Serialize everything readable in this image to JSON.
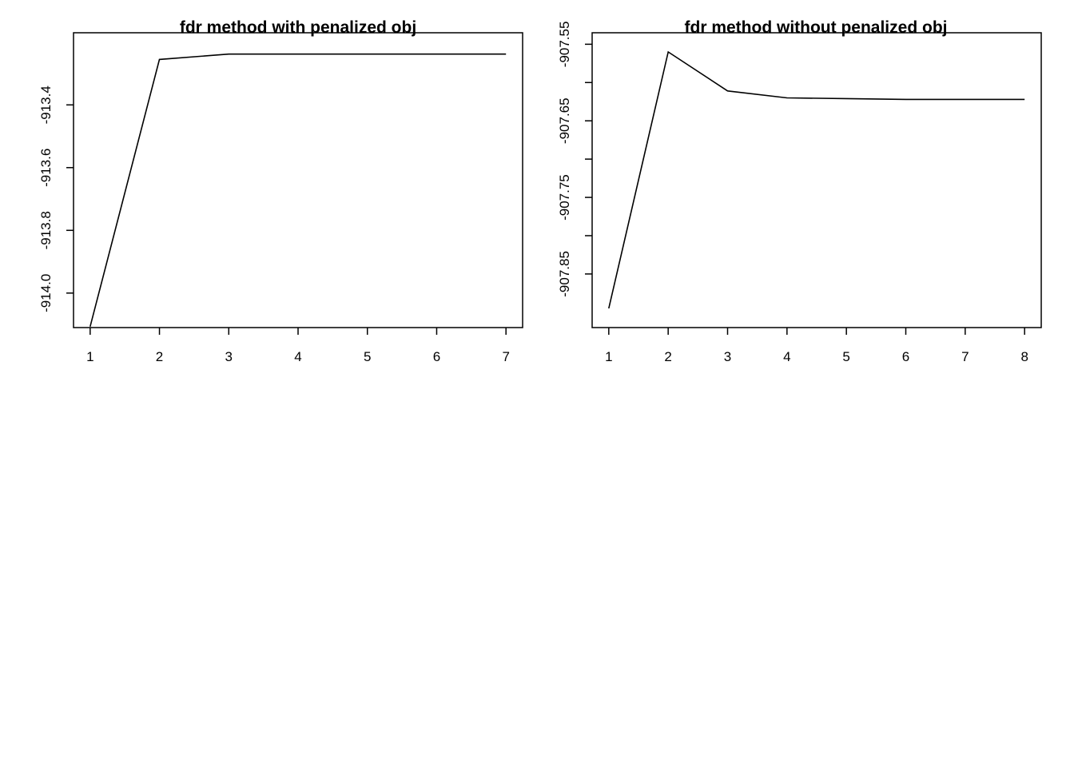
{
  "chart_data": [
    {
      "type": "line",
      "title": "fdr method with penalized obj",
      "xlabel": "",
      "ylabel": "",
      "x": [
        1,
        2,
        3,
        4,
        5,
        6,
        7
      ],
      "xticks": [
        "1",
        "2",
        "3",
        "4",
        "5",
        "6",
        "7"
      ],
      "xlim": [
        0.76,
        7.24
      ],
      "ylim": [
        -914.11,
        -913.17
      ],
      "yticks": [
        -914.0,
        -913.8,
        -913.6,
        -913.4
      ],
      "ytick_labels": [
        "-914.0",
        "-913.8",
        "-913.6",
        "-913.4"
      ],
      "series": [
        {
          "values": [
            -914.107,
            -913.255,
            -913.238,
            -913.238,
            -913.238,
            -913.238,
            -913.238
          ]
        }
      ],
      "grid": false,
      "line_color": "#000000"
    },
    {
      "type": "line",
      "title": "fdr method without penalized obj",
      "xlabel": "",
      "ylabel": "",
      "x": [
        1,
        2,
        3,
        4,
        5,
        6,
        7,
        8
      ],
      "xticks": [
        "1",
        "2",
        "3",
        "4",
        "5",
        "6",
        "7",
        "8"
      ],
      "xlim": [
        0.72,
        8.28
      ],
      "ylim": [
        -907.92,
        -907.535
      ],
      "yticks": [
        -907.85,
        -907.8,
        -907.75,
        -907.7,
        -907.65,
        -907.6,
        -907.55
      ],
      "ytick_labels": [
        "-907.85",
        "",
        "-907.75",
        "",
        "-907.65",
        "",
        "-907.55"
      ],
      "series": [
        {
          "values": [
            -907.895,
            -907.56,
            -907.611,
            -907.62,
            -907.621,
            -907.622,
            -907.622,
            -907.622
          ]
        }
      ],
      "grid": false,
      "line_color": "#000000"
    }
  ]
}
